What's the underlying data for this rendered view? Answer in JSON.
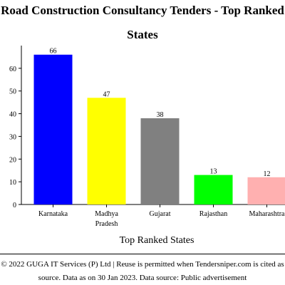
{
  "chart_data": {
    "type": "bar",
    "title": "Road Construction Consultancy Tenders - Top Ranked States",
    "title_line_1": "Road Construction Consultancy Tenders - Top Ranked",
    "title_line_2": "States",
    "xlabel": "Top Ranked States",
    "ylabel": "",
    "categories": [
      "Karnataka",
      "Madhya Pradesh",
      "Gujarat",
      "Rajasthan",
      "Maharashtra"
    ],
    "category_lines": [
      [
        "Karnataka"
      ],
      [
        "Madhya",
        "Pradesh"
      ],
      [
        "Gujarat"
      ],
      [
        "Rajasthan"
      ],
      [
        "Maharashtra"
      ]
    ],
    "values": [
      66,
      47,
      38,
      13,
      12
    ],
    "data_labels": [
      "66",
      "47",
      "38",
      "13",
      "12"
    ],
    "colors": [
      "#0000ff",
      "#ffff00",
      "#808080",
      "#00ff00",
      "#ffb0b0"
    ],
    "ylim": [
      0,
      70
    ],
    "yticks": [
      0,
      10,
      20,
      30,
      40,
      50,
      60
    ],
    "grid": false,
    "legend": "none"
  },
  "footer": {
    "line_1": "© 2022 GUGA IT Services (P) Ltd | Reuse is permitted when Tendersniper.com is cited as",
    "line_2": "source. Data as on 30 Jan 2023. Data source: Public advertisement"
  }
}
